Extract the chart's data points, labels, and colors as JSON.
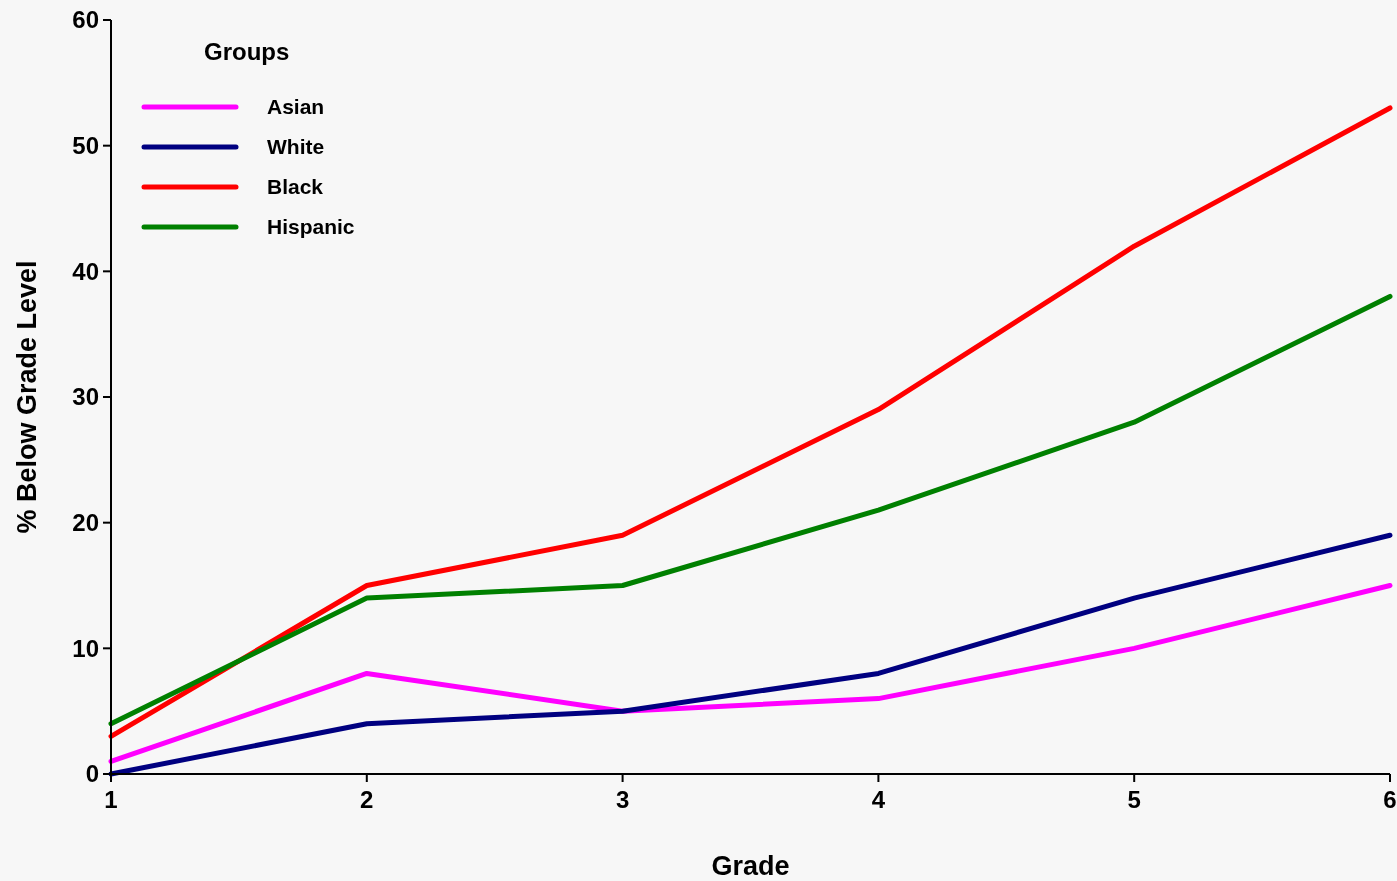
{
  "chart_data": {
    "type": "line",
    "xlabel": "Grade",
    "ylabel": "% Below Grade Level",
    "legend_title": "Groups",
    "legend": "top left",
    "x": [
      1,
      2,
      3,
      4,
      5,
      6
    ],
    "xlim": [
      1,
      6
    ],
    "xticks": [
      1,
      2,
      3,
      4,
      5,
      6
    ],
    "ylim": [
      0,
      60
    ],
    "yticks": [
      0,
      10,
      20,
      30,
      40,
      50,
      60
    ],
    "series": [
      {
        "name": "Asian",
        "color": "#ff00ff",
        "values": [
          1,
          8,
          5,
          6,
          10,
          15
        ]
      },
      {
        "name": "White",
        "color": "#000080",
        "values": [
          0,
          4,
          5,
          8,
          14,
          19
        ]
      },
      {
        "name": "Black",
        "color": "#ff0000",
        "values": [
          3,
          15,
          19,
          29,
          42,
          53
        ]
      },
      {
        "name": "Hispanic",
        "color": "#008000",
        "values": [
          4,
          14,
          15,
          21,
          28,
          38
        ]
      }
    ]
  }
}
